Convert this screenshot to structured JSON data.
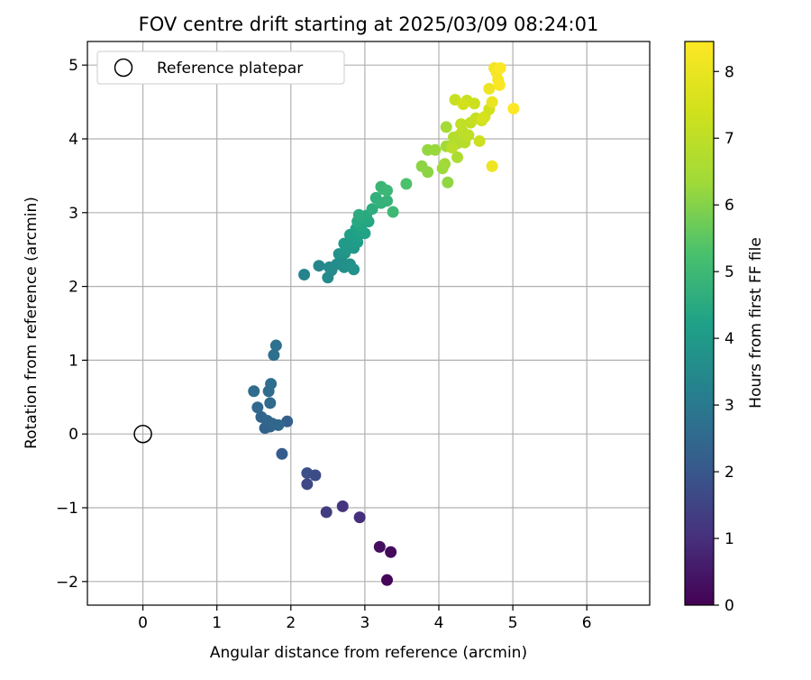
{
  "chart_data": {
    "type": "scatter",
    "title": "FOV centre drift starting at 2025/03/09 08:24:01",
    "xlabel": "Angular distance from reference (arcmin)",
    "ylabel": "Rotation from reference (arcmin)",
    "xlim": [
      -0.75,
      6.85
    ],
    "ylim": [
      -2.32,
      5.32
    ],
    "xticks": [
      0,
      1,
      2,
      3,
      4,
      5,
      6
    ],
    "yticks": [
      -2,
      -1,
      0,
      1,
      2,
      3,
      4,
      5
    ],
    "grid": true,
    "legend": {
      "position": "top-left",
      "entries": [
        "Reference platepar"
      ]
    },
    "reference_point": {
      "label": "Reference platepar",
      "x": 0,
      "y": 0
    },
    "colorbar": {
      "label": "Hours from first FF file",
      "min": 0,
      "max": 8.45,
      "ticks": [
        0,
        1,
        2,
        3,
        4,
        5,
        6,
        7,
        8
      ],
      "colormap": "viridis"
    },
    "points": [
      [
        3.3,
        -1.98,
        0.1
      ],
      [
        3.35,
        -1.6,
        0.2
      ],
      [
        3.2,
        -1.53,
        0.3
      ],
      [
        2.93,
        -1.13,
        1.0
      ],
      [
        2.7,
        -0.98,
        1.1
      ],
      [
        2.48,
        -1.06,
        1.3
      ],
      [
        2.22,
        -0.68,
        1.6
      ],
      [
        2.22,
        -0.53,
        1.8
      ],
      [
        2.33,
        -0.56,
        1.7
      ],
      [
        1.88,
        -0.27,
        2.1
      ],
      [
        1.95,
        0.17,
        2.2
      ],
      [
        1.65,
        0.08,
        2.3
      ],
      [
        1.72,
        0.1,
        2.3
      ],
      [
        1.6,
        0.23,
        2.35
      ],
      [
        1.68,
        0.18,
        2.4
      ],
      [
        1.75,
        0.14,
        2.4
      ],
      [
        1.83,
        0.12,
        2.45
      ],
      [
        1.55,
        0.36,
        2.5
      ],
      [
        1.72,
        0.42,
        2.55
      ],
      [
        1.5,
        0.58,
        2.6
      ],
      [
        1.7,
        0.58,
        2.6
      ],
      [
        1.73,
        0.68,
        2.65
      ],
      [
        1.77,
        1.07,
        2.7
      ],
      [
        1.8,
        1.2,
        2.75
      ],
      [
        2.18,
        2.16,
        3.3
      ],
      [
        2.38,
        2.28,
        3.4
      ],
      [
        2.5,
        2.12,
        3.5
      ],
      [
        2.55,
        2.22,
        3.5
      ],
      [
        2.52,
        2.26,
        3.55
      ],
      [
        2.62,
        2.3,
        3.6
      ],
      [
        2.68,
        2.36,
        3.65
      ],
      [
        2.72,
        2.26,
        3.7
      ],
      [
        2.8,
        2.3,
        3.7
      ],
      [
        2.85,
        2.23,
        3.75
      ],
      [
        2.65,
        2.44,
        3.8
      ],
      [
        2.73,
        2.45,
        3.85
      ],
      [
        2.78,
        2.52,
        3.9
      ],
      [
        2.85,
        2.52,
        3.95
      ],
      [
        2.72,
        2.58,
        4.0
      ],
      [
        2.82,
        2.62,
        4.05
      ],
      [
        2.9,
        2.6,
        4.1
      ],
      [
        2.8,
        2.7,
        4.15
      ],
      [
        2.92,
        2.7,
        4.2
      ],
      [
        2.88,
        2.78,
        4.25
      ],
      [
        3.0,
        2.72,
        4.3
      ],
      [
        2.95,
        2.82,
        4.35
      ],
      [
        3.05,
        2.88,
        4.4
      ],
      [
        2.9,
        2.88,
        4.45
      ],
      [
        3.02,
        2.96,
        4.5
      ],
      [
        2.92,
        2.97,
        4.55
      ],
      [
        3.1,
        3.05,
        4.6
      ],
      [
        3.15,
        3.2,
        4.7
      ],
      [
        3.22,
        3.13,
        4.75
      ],
      [
        3.3,
        3.16,
        4.8
      ],
      [
        3.25,
        3.32,
        4.85
      ],
      [
        3.22,
        3.35,
        4.9
      ],
      [
        3.3,
        3.3,
        4.95
      ],
      [
        3.38,
        3.01,
        5.0
      ],
      [
        3.56,
        3.39,
        5.3
      ],
      [
        3.77,
        3.63,
        6.1
      ],
      [
        3.85,
        3.55,
        6.1
      ],
      [
        4.12,
        3.41,
        6.15
      ],
      [
        3.85,
        3.85,
        6.2
      ],
      [
        3.95,
        3.85,
        6.25
      ],
      [
        4.05,
        3.6,
        6.3
      ],
      [
        4.08,
        3.66,
        6.35
      ],
      [
        4.1,
        3.9,
        6.4
      ],
      [
        4.1,
        4.16,
        6.45
      ],
      [
        4.25,
        3.75,
        6.6
      ],
      [
        4.25,
        3.94,
        6.7
      ],
      [
        4.2,
        4.02,
        6.75
      ],
      [
        4.28,
        4.05,
        6.8
      ],
      [
        4.35,
        3.95,
        6.85
      ],
      [
        4.18,
        3.88,
        6.9
      ],
      [
        4.32,
        4.1,
        6.95
      ],
      [
        4.4,
        4.05,
        7.0
      ],
      [
        4.3,
        4.2,
        7.05
      ],
      [
        4.43,
        4.22,
        7.1
      ],
      [
        4.5,
        4.28,
        7.15
      ],
      [
        4.22,
        4.53,
        7.2
      ],
      [
        4.38,
        4.52,
        7.25
      ],
      [
        4.48,
        4.48,
        7.3
      ],
      [
        4.55,
        3.97,
        7.3
      ],
      [
        4.58,
        4.25,
        7.35
      ],
      [
        4.62,
        4.3,
        7.4
      ],
      [
        4.68,
        4.4,
        7.45
      ],
      [
        4.33,
        4.47,
        7.45
      ],
      [
        4.6,
        4.28,
        7.5
      ],
      [
        4.68,
        4.68,
        8.1
      ],
      [
        4.72,
        4.5,
        8.0
      ],
      [
        4.72,
        3.63,
        8.1
      ],
      [
        4.75,
        4.96,
        8.2
      ],
      [
        4.8,
        4.8,
        8.25
      ],
      [
        4.78,
        4.9,
        8.3
      ],
      [
        4.82,
        4.73,
        8.35
      ],
      [
        4.83,
        4.96,
        8.4
      ],
      [
        5.01,
        4.41,
        8.4
      ]
    ]
  }
}
